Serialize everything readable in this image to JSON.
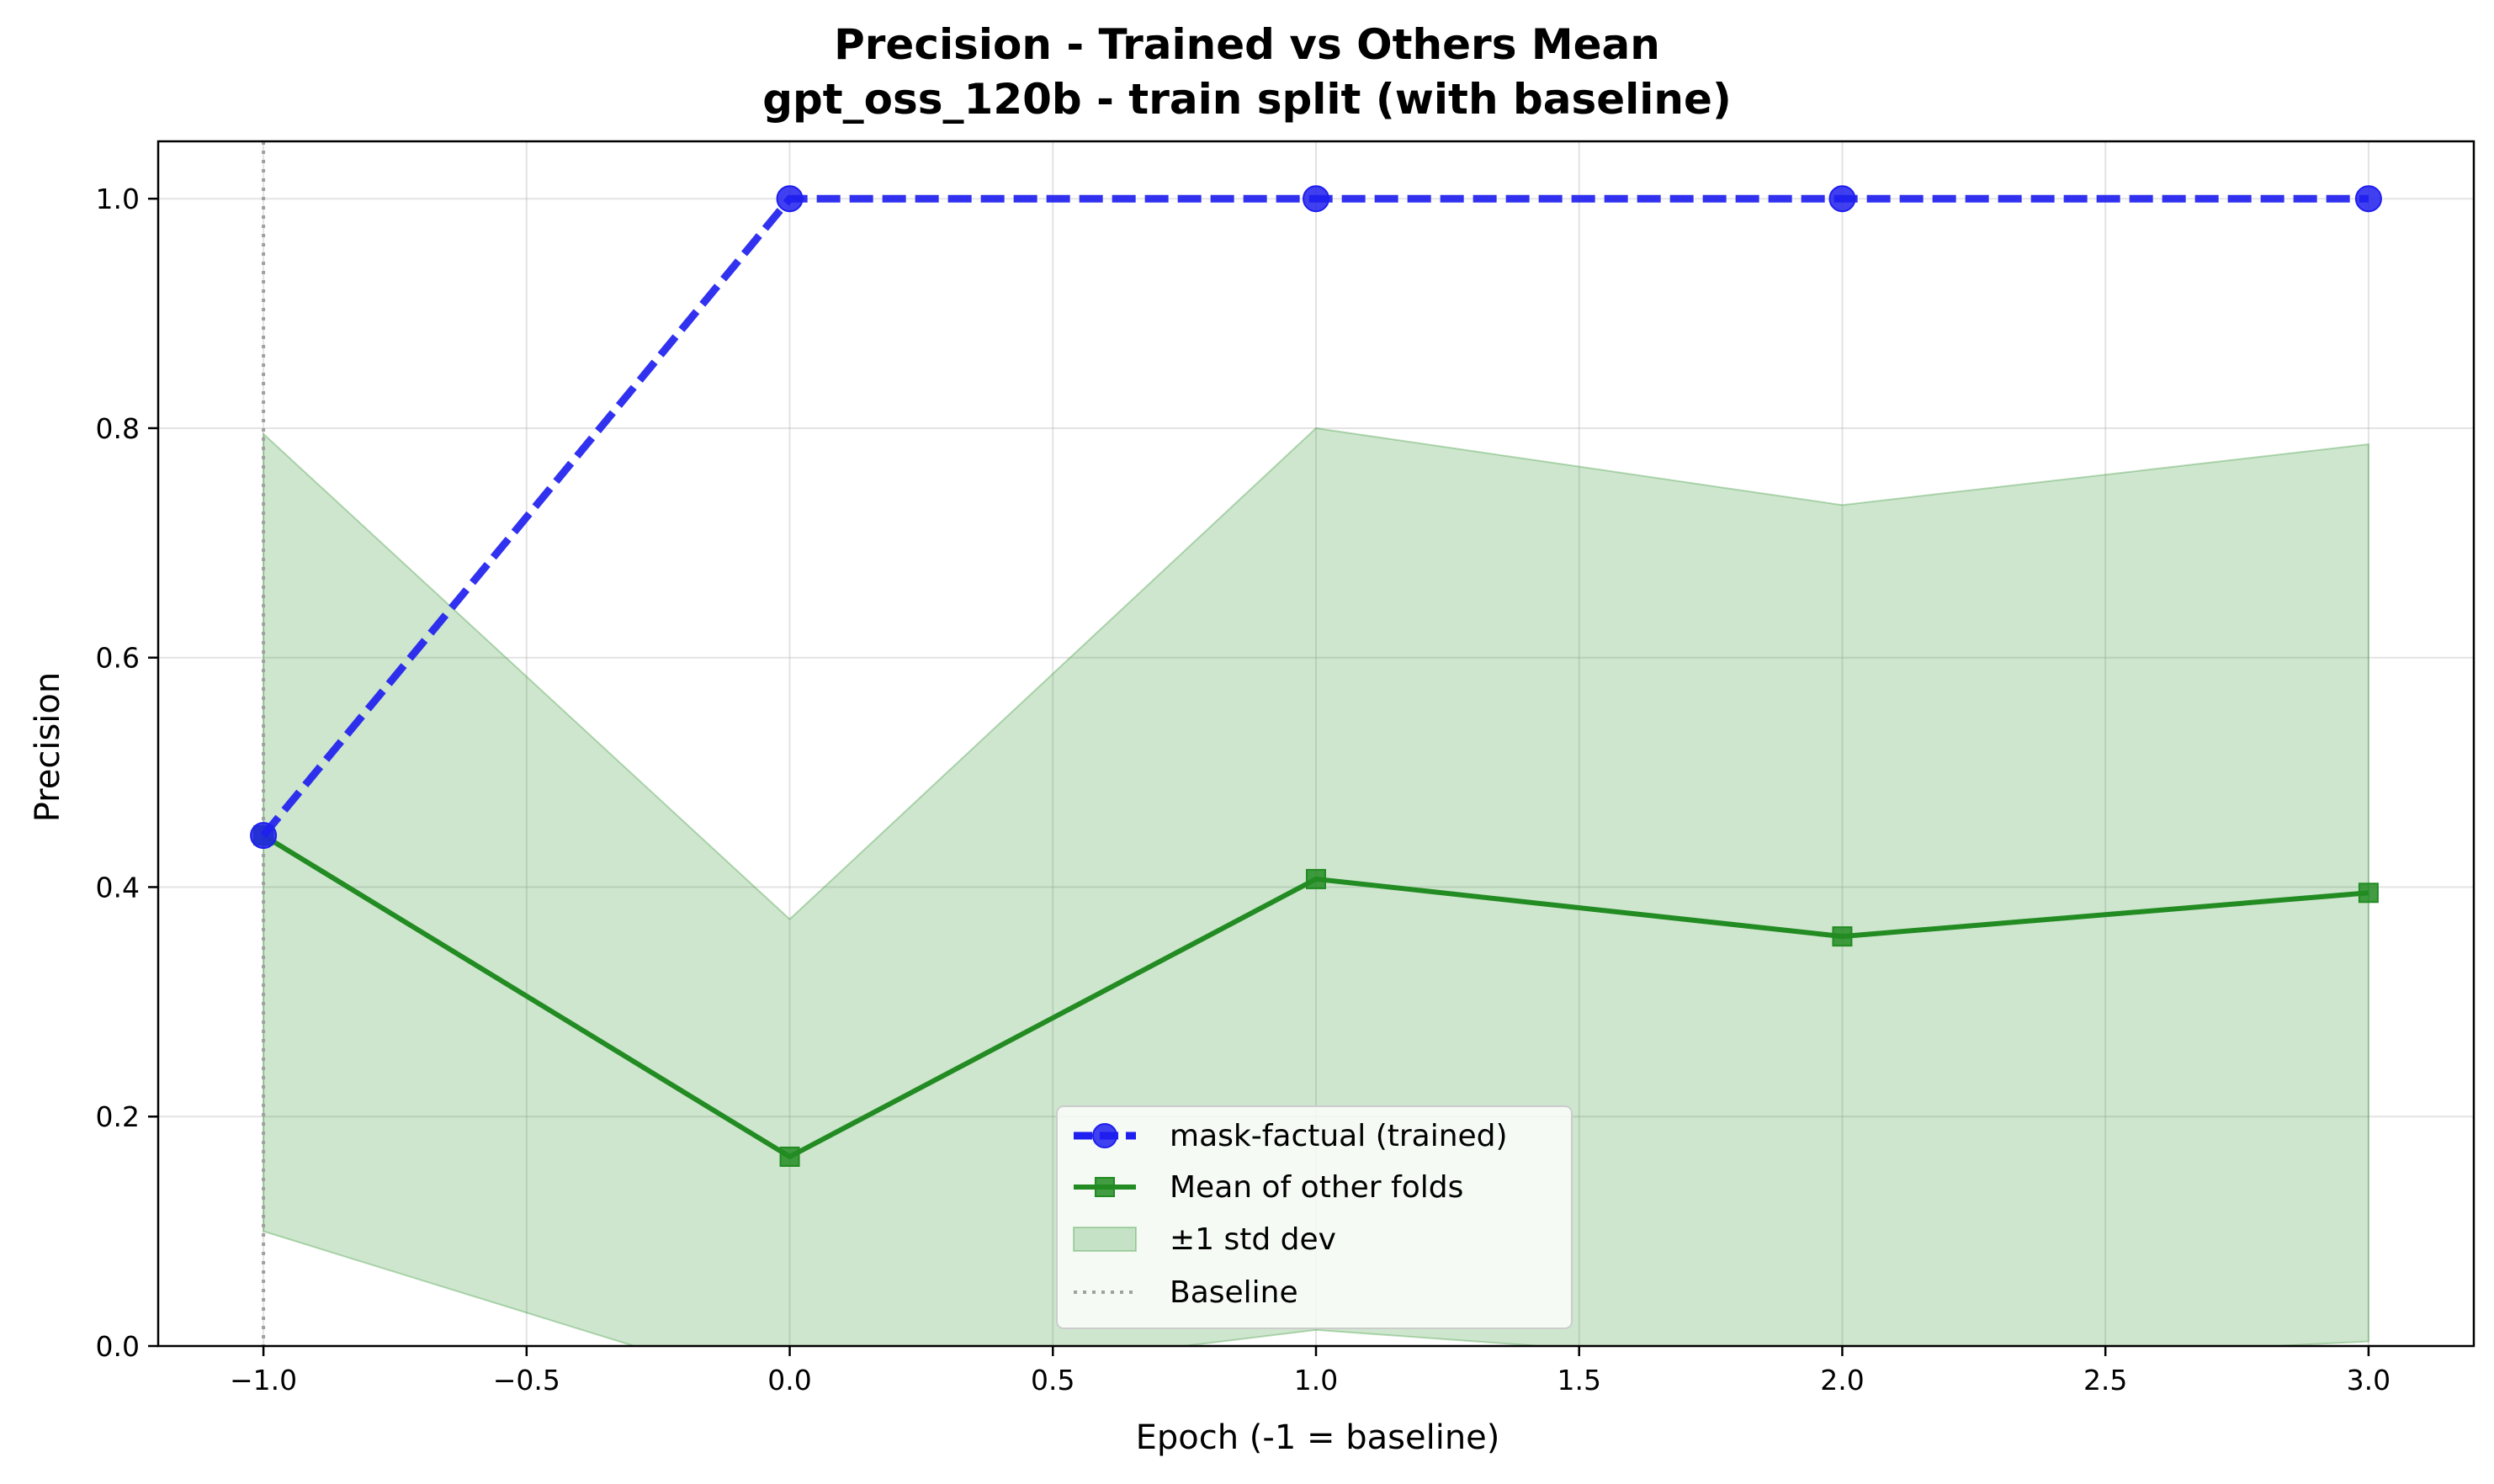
{
  "chart_data": {
    "type": "line",
    "title": "Precision - Trained vs Others Mean",
    "subtitle": "gpt_oss_120b - train split (with baseline)",
    "xlabel": "Epoch (-1 = baseline)",
    "ylabel": "Precision",
    "xlim": [
      -1.2,
      3.2
    ],
    "ylim": [
      0.0,
      1.05
    ],
    "xticks": [
      -1.0,
      -0.5,
      0.0,
      0.5,
      1.0,
      1.5,
      2.0,
      2.5,
      3.0
    ],
    "xtick_labels": [
      "−1.0",
      "−0.5",
      "0.0",
      "0.5",
      "1.0",
      "1.5",
      "2.0",
      "2.5",
      "3.0"
    ],
    "yticks": [
      0.0,
      0.2,
      0.4,
      0.6,
      0.8,
      1.0
    ],
    "ytick_labels": [
      "0.0",
      "0.2",
      "0.4",
      "0.6",
      "0.8",
      "1.0"
    ],
    "grid": true,
    "legend_position": "bottom-center",
    "x": [
      -1,
      0,
      1,
      2,
      3
    ],
    "series": [
      {
        "name": "mask-factual (trained)",
        "values": [
          0.445,
          1.0,
          1.0,
          1.0,
          1.0
        ],
        "color": "#1f1fef",
        "style": "dashed",
        "marker": "circle"
      },
      {
        "name": "Mean of other folds",
        "values": [
          0.445,
          0.165,
          0.407,
          0.357,
          0.395
        ],
        "color": "#228b22",
        "style": "solid",
        "marker": "square"
      }
    ],
    "band": {
      "name": "±1 std dev",
      "upper": [
        0.795,
        0.372,
        0.8,
        0.733,
        0.786
      ],
      "lower": [
        0.1,
        -0.042,
        0.014,
        -0.019,
        0.004
      ],
      "color": "#228b22"
    },
    "baseline": {
      "name": "Baseline",
      "x": -1,
      "color": "#a0a0a0",
      "style": "dotted"
    }
  }
}
